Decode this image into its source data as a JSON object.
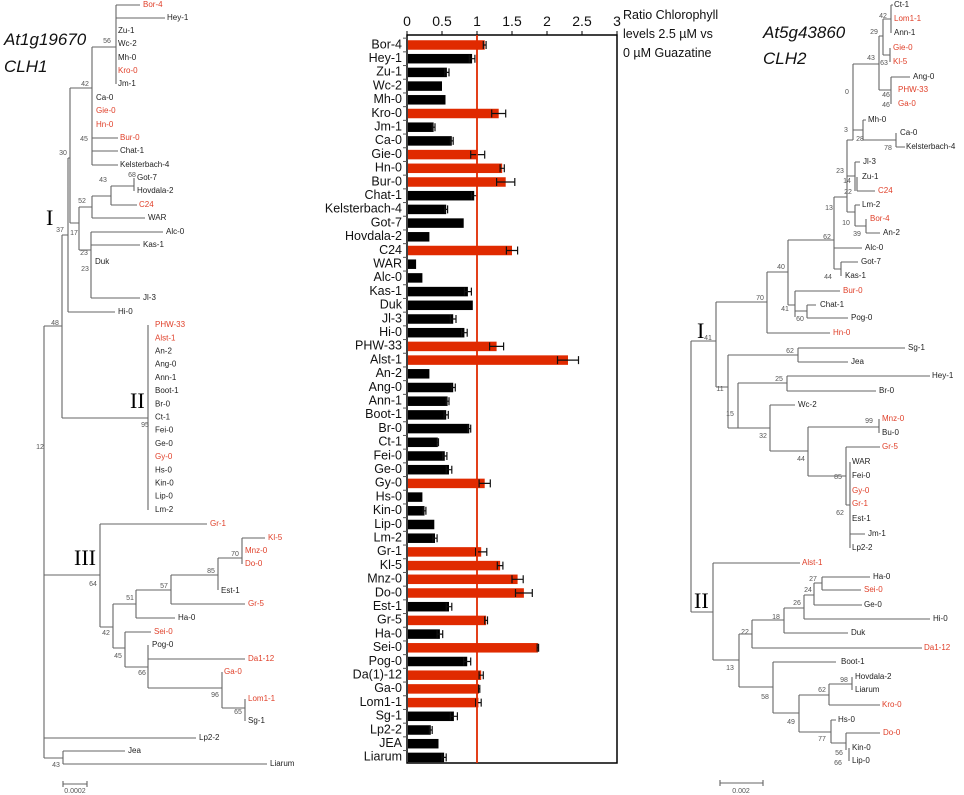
{
  "left_tree": {
    "title_gene": "At1g19670",
    "title_name": "CLH1",
    "clades": [
      "I",
      "II",
      "III"
    ],
    "scale_label": "0.0002",
    "leaves": [
      {
        "name": "Bor-4",
        "red": true
      },
      {
        "name": "Hey-1",
        "red": false
      },
      {
        "name": "Zu-1",
        "red": false
      },
      {
        "name": "Wc-2",
        "red": false
      },
      {
        "name": "Mh-0",
        "red": false
      },
      {
        "name": "Kro-0",
        "red": true
      },
      {
        "name": "Jm-1",
        "red": false
      },
      {
        "name": "Ca-0",
        "red": false
      },
      {
        "name": "Gie-0",
        "red": true
      },
      {
        "name": "Hn-0",
        "red": true
      },
      {
        "name": "Bur-0",
        "red": true
      },
      {
        "name": "Chat-1",
        "red": false
      },
      {
        "name": "Kelsterbach-4",
        "red": false
      },
      {
        "name": "Got-7",
        "red": false
      },
      {
        "name": "Hovdala-2",
        "red": false
      },
      {
        "name": "C24",
        "red": true
      },
      {
        "name": "WAR",
        "red": false
      },
      {
        "name": "Alc-0",
        "red": false
      },
      {
        "name": "Kas-1",
        "red": false
      },
      {
        "name": "Duk",
        "red": false
      },
      {
        "name": "Jl-3",
        "red": false
      },
      {
        "name": "Hi-0",
        "red": false
      },
      {
        "name": "PHW-33",
        "red": true
      },
      {
        "name": "Alst-1",
        "red": true
      },
      {
        "name": "An-2",
        "red": false
      },
      {
        "name": "Ang-0",
        "red": false
      },
      {
        "name": "Ann-1",
        "red": false
      },
      {
        "name": "Boot-1",
        "red": false
      },
      {
        "name": "Br-0",
        "red": false
      },
      {
        "name": "Ct-1",
        "red": false
      },
      {
        "name": "Fei-0",
        "red": false
      },
      {
        "name": "Ge-0",
        "red": false
      },
      {
        "name": "Gy-0",
        "red": true
      },
      {
        "name": "Hs-0",
        "red": false
      },
      {
        "name": "Kin-0",
        "red": false
      },
      {
        "name": "Lip-0",
        "red": false
      },
      {
        "name": "Lm-2",
        "red": false
      },
      {
        "name": "Gr-1",
        "red": true
      },
      {
        "name": "Kl-5",
        "red": true
      },
      {
        "name": "Mnz-0",
        "red": true
      },
      {
        "name": "Do-0",
        "red": true
      },
      {
        "name": "Est-1",
        "red": false
      },
      {
        "name": "Gr-5",
        "red": true
      },
      {
        "name": "Ha-0",
        "red": false
      },
      {
        "name": "Sei-0",
        "red": true
      },
      {
        "name": "Pog-0",
        "red": false
      },
      {
        "name": "Da1-12",
        "red": true
      },
      {
        "name": "Ga-0",
        "red": true
      },
      {
        "name": "Lom1-1",
        "red": true
      },
      {
        "name": "Sg-1",
        "red": false
      },
      {
        "name": "Lp2-2",
        "red": false
      },
      {
        "name": "Jea",
        "red": false
      },
      {
        "name": "Liarum",
        "red": false
      }
    ],
    "bootstraps": [
      "56",
      "42",
      "45",
      "30",
      "68",
      "43",
      "52",
      "37",
      "17",
      "23",
      "23",
      "48",
      "95",
      "12",
      "64",
      "70",
      "85",
      "57",
      "51",
      "42",
      "45",
      "66",
      "96",
      "65",
      "43"
    ]
  },
  "right_tree": {
    "title_gene": "At5g43860",
    "title_name": "CLH2",
    "clades": [
      "I",
      "II"
    ],
    "scale_label": "0.002",
    "leaves": [
      {
        "name": "Ct-1",
        "red": false
      },
      {
        "name": "Lom1-1",
        "red": true
      },
      {
        "name": "Ann-1",
        "red": false
      },
      {
        "name": "Gie-0",
        "red": true
      },
      {
        "name": "Kl-5",
        "red": true
      },
      {
        "name": "Ang-0",
        "red": false
      },
      {
        "name": "PHW-33",
        "red": true
      },
      {
        "name": "Ga-0",
        "red": true
      },
      {
        "name": "Mh-0",
        "red": false
      },
      {
        "name": "Ca-0",
        "red": false
      },
      {
        "name": "Kelsterbach-4",
        "red": false
      },
      {
        "name": "Jl-3",
        "red": false
      },
      {
        "name": "Zu-1",
        "red": false
      },
      {
        "name": "C24",
        "red": true
      },
      {
        "name": "Lm-2",
        "red": false
      },
      {
        "name": "Bor-4",
        "red": true
      },
      {
        "name": "An-2",
        "red": false
      },
      {
        "name": "Alc-0",
        "red": false
      },
      {
        "name": "Got-7",
        "red": false
      },
      {
        "name": "Kas-1",
        "red": false
      },
      {
        "name": "Bur-0",
        "red": true
      },
      {
        "name": "Chat-1",
        "red": false
      },
      {
        "name": "Pog-0",
        "red": false
      },
      {
        "name": "Hn-0",
        "red": true
      },
      {
        "name": "Sg-1",
        "red": false
      },
      {
        "name": "Jea",
        "red": false
      },
      {
        "name": "Hey-1",
        "red": false
      },
      {
        "name": "Br-0",
        "red": false
      },
      {
        "name": "Wc-2",
        "red": false
      },
      {
        "name": "Mnz-0",
        "red": true
      },
      {
        "name": "Bu-0",
        "red": false
      },
      {
        "name": "Gr-5",
        "red": true
      },
      {
        "name": "WAR",
        "red": false
      },
      {
        "name": "Fei-0",
        "red": false
      },
      {
        "name": "Gy-0",
        "red": true
      },
      {
        "name": "Gr-1",
        "red": true
      },
      {
        "name": "Est-1",
        "red": false
      },
      {
        "name": "Jm-1",
        "red": false
      },
      {
        "name": "Lp2-2",
        "red": false
      },
      {
        "name": "Alst-1",
        "red": true
      },
      {
        "name": "Ha-0",
        "red": false
      },
      {
        "name": "Sei-0",
        "red": true
      },
      {
        "name": "Ge-0",
        "red": false
      },
      {
        "name": "Hi-0",
        "red": false
      },
      {
        "name": "Duk",
        "red": false
      },
      {
        "name": "Da1-12",
        "red": true
      },
      {
        "name": "Boot-1",
        "red": false
      },
      {
        "name": "Hovdala-2",
        "red": false
      },
      {
        "name": "Liarum",
        "red": false
      },
      {
        "name": "Kro-0",
        "red": true
      },
      {
        "name": "Hs-0",
        "red": false
      },
      {
        "name": "Do-0",
        "red": true
      },
      {
        "name": "Kin-0",
        "red": false
      },
      {
        "name": "Lip-0",
        "red": false
      }
    ],
    "bootstraps": [
      "42",
      "29",
      "43",
      "63",
      "0",
      "46",
      "46",
      "3",
      "28",
      "78",
      "23",
      "14",
      "22",
      "13",
      "10",
      "39",
      "62",
      "40",
      "44",
      "70",
      "41",
      "60",
      "41",
      "62",
      "25",
      "11",
      "15",
      "99",
      "32",
      "44",
      "85",
      "62",
      "27",
      "24",
      "26",
      "18",
      "22",
      "62",
      "98",
      "13",
      "58",
      "49",
      "77",
      "56",
      "66"
    ]
  },
  "colors": {
    "highlight": "#e02a00",
    "normal": "#000000",
    "tree_red": "#e0402a",
    "reference_line": "#e02a00"
  },
  "chart_data": {
    "type": "bar",
    "orientation": "horizontal",
    "title": "Ratio Chlorophyll levels 2.5 µM vs 0 µM Guazatine",
    "title_lines": [
      "Ratio Chlorophyll",
      "levels 2.5 µM vs",
      "0 µM Guazatine"
    ],
    "xlim": [
      0,
      3
    ],
    "xticks": [
      "0",
      "0.5",
      "1",
      "1.5",
      "2",
      "2.5",
      "3"
    ],
    "reference_line": 1,
    "categories": [
      "Bor-4",
      "Hey-1",
      "Zu-1",
      "Wc-2",
      "Mh-0",
      "Kro-0",
      "Jm-1",
      "Ca-0",
      "Gie-0",
      "Hn-0",
      "Bur-0",
      "Chat-1",
      "Kelsterbach-4",
      "Got-7",
      "Hovdala-2",
      "C24",
      "WAR",
      "Alc-0",
      "Kas-1",
      "Duk",
      "Jl-3",
      "Hi-0",
      "PHW-33",
      "Alst-1",
      "An-2",
      "Ang-0",
      "Ann-1",
      "Boot-1",
      "Br-0",
      "Ct-1",
      "Fei-0",
      "Ge-0",
      "Gy-0",
      "Hs-0",
      "Kin-0",
      "Lip-0",
      "Lm-2",
      "Gr-1",
      "Kl-5",
      "Mnz-0",
      "Do-0",
      "Est-1",
      "Gr-5",
      "Ha-0",
      "Sei-0",
      "Pog-0",
      "Da(1)-12",
      "Ga-0",
      "Lom1-1",
      "Sg-1",
      "Lp2-2",
      "JEA",
      "Liarum"
    ],
    "values": [
      1.11,
      0.93,
      0.57,
      0.5,
      0.55,
      1.31,
      0.38,
      0.64,
      1.01,
      1.36,
      1.41,
      0.96,
      0.56,
      0.81,
      0.32,
      1.5,
      0.13,
      0.22,
      0.87,
      0.94,
      0.66,
      0.82,
      1.28,
      2.3,
      0.32,
      0.66,
      0.58,
      0.56,
      0.89,
      0.44,
      0.54,
      0.6,
      1.11,
      0.22,
      0.25,
      0.39,
      0.4,
      1.06,
      1.33,
      1.58,
      1.67,
      0.6,
      1.13,
      0.47,
      1.87,
      0.86,
      1.06,
      1.03,
      1.02,
      0.67,
      0.34,
      0.45,
      0.53
    ],
    "errors": [
      0.02,
      0.04,
      0.03,
      0,
      0,
      0.1,
      0.02,
      0.02,
      0.1,
      0.03,
      0.13,
      0.04,
      0.02,
      0,
      0,
      0.08,
      0,
      0,
      0.05,
      0,
      0.04,
      0.04,
      0.1,
      0.15,
      0,
      0.03,
      0.02,
      0.03,
      0.02,
      0.01,
      0.03,
      0.04,
      0.08,
      0,
      0.02,
      0,
      0.03,
      0.08,
      0.04,
      0.08,
      0.12,
      0.04,
      0.02,
      0.04,
      0.01,
      0.05,
      0.03,
      0.01,
      0.04,
      0.05,
      0.02,
      0,
      0.03
    ],
    "highlighted": [
      "Bor-4",
      "Kro-0",
      "Gie-0",
      "Hn-0",
      "Bur-0",
      "C24",
      "PHW-33",
      "Alst-1",
      "Gy-0",
      "Gr-1",
      "Kl-5",
      "Mnz-0",
      "Do-0",
      "Gr-5",
      "Sei-0",
      "Da(1)-12",
      "Ga-0",
      "Lom1-1"
    ]
  }
}
